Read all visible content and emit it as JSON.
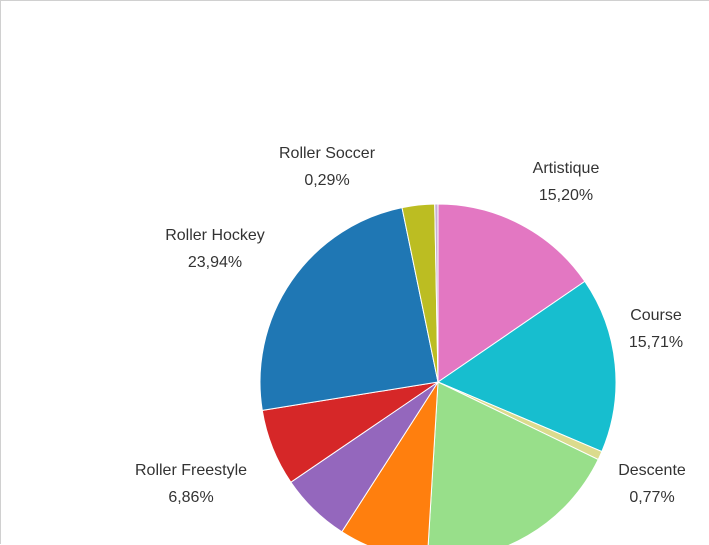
{
  "chart_data": {
    "type": "pie",
    "slices": [
      {
        "name": "Artistique",
        "value": 15.2,
        "value_label": "15,20%",
        "color": "#e377c2"
      },
      {
        "name": "Course",
        "value": 15.71,
        "value_label": "15,71%",
        "color": "#17becf"
      },
      {
        "name": "Descente",
        "value": 0.77,
        "value_label": "0,77%",
        "color": "#dbdb8d"
      },
      {
        "name": "",
        "value": 18.5,
        "value_label": "",
        "color": "#98df8a"
      },
      {
        "name": "",
        "value": 8.0,
        "value_label": "",
        "color": "#ff7f0e"
      },
      {
        "name": "",
        "value": 6.3,
        "value_label": "",
        "color": "#9467bd"
      },
      {
        "name": "Roller Freestyle",
        "value": 6.86,
        "value_label": "6,86%",
        "color": "#d62728"
      },
      {
        "name": "Roller Hockey",
        "value": 23.94,
        "value_label": "23,94%",
        "color": "#1f77b4"
      },
      {
        "name": "",
        "value": 2.9,
        "value_label": "",
        "color": "#bcbd22"
      },
      {
        "name": "Roller Soccer",
        "value": 0.29,
        "value_label": "0,29%",
        "color": "#c5b0d5"
      }
    ]
  }
}
